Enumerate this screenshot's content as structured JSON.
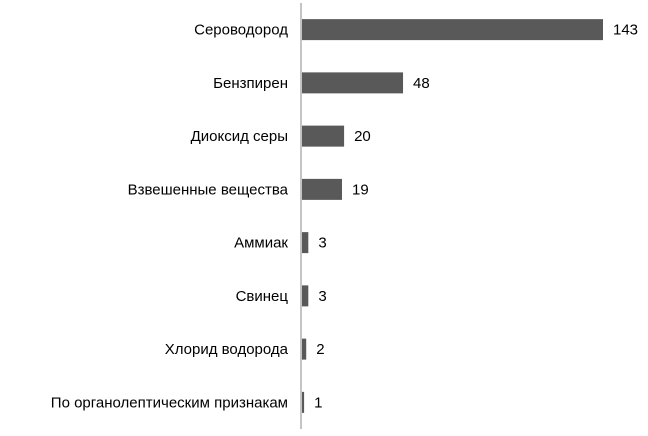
{
  "chart_data": {
    "type": "bar",
    "orientation": "horizontal",
    "categories": [
      "Сероводород",
      "Бензпирен",
      "Диоксид серы",
      "Взвешенные вещества",
      "Аммиак",
      "Свинец",
      "Хлорид водорода",
      "По органолептическим признакам"
    ],
    "values": [
      143,
      48,
      20,
      19,
      3,
      3,
      2,
      1
    ],
    "color": "#595959"
  }
}
